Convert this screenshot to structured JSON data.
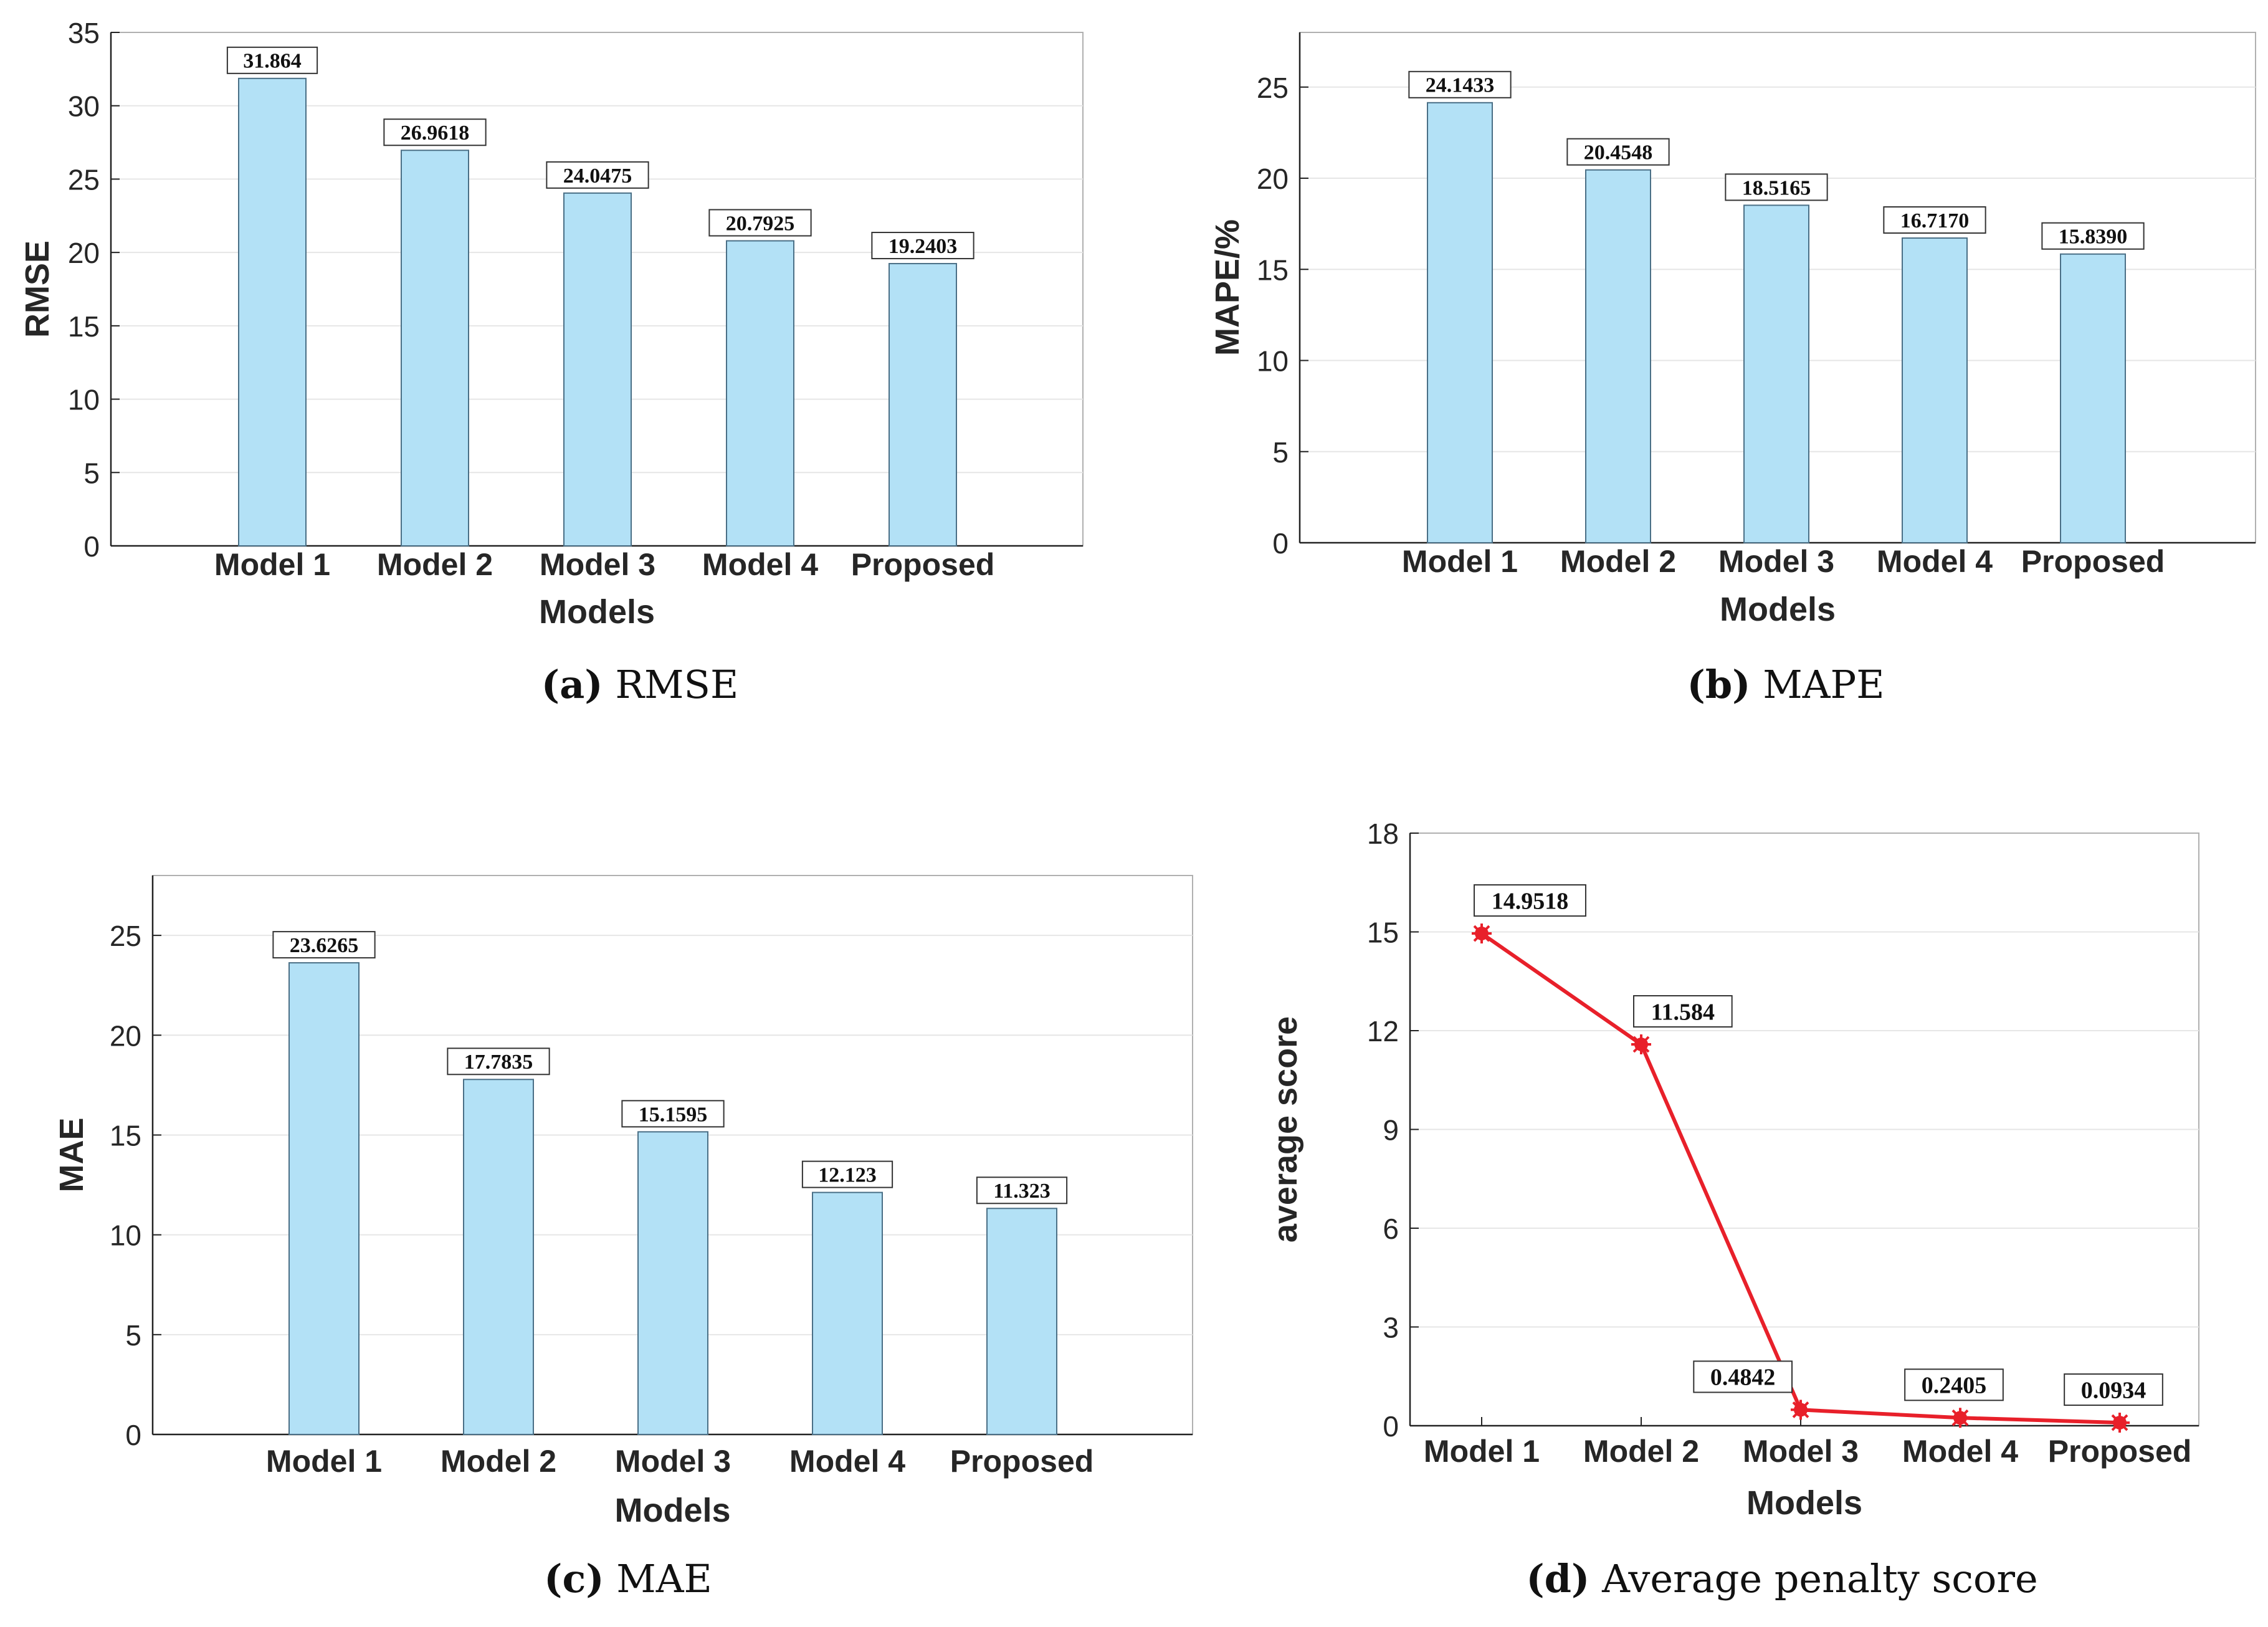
{
  "chart_data": [
    {
      "id": "a",
      "type": "bar",
      "categories": [
        "Model 1",
        "Model 2",
        "Model 3",
        "Model 4",
        "Proposed"
      ],
      "values": [
        31.864,
        26.9618,
        24.0475,
        20.7925,
        19.2403
      ],
      "value_labels": [
        "31.864",
        "26.9618",
        "24.0475",
        "20.7925",
        "19.2403"
      ],
      "ylabel": "RMSE",
      "xlabel": "Models",
      "ylim": [
        0,
        35
      ],
      "yticks": [
        0,
        5,
        10,
        15,
        20,
        25,
        30,
        35
      ],
      "grid": true,
      "caption_letter": "(a)",
      "caption_text": "RMSE"
    },
    {
      "id": "b",
      "type": "bar",
      "categories": [
        "Model 1",
        "Model 2",
        "Model 3",
        "Model 4",
        "Proposed"
      ],
      "values": [
        24.1433,
        20.4548,
        18.5165,
        16.717,
        15.839
      ],
      "value_labels": [
        "24.1433",
        "20.4548",
        "18.5165",
        "16.7170",
        "15.8390"
      ],
      "ylabel": "MAPE/%",
      "xlabel": "Models",
      "ylim": [
        0,
        28
      ],
      "yticks": [
        0,
        5,
        10,
        15,
        20,
        25
      ],
      "grid": true,
      "caption_letter": "(b)",
      "caption_text": "MAPE"
    },
    {
      "id": "c",
      "type": "bar",
      "categories": [
        "Model 1",
        "Model 2",
        "Model 3",
        "Model 4",
        "Proposed"
      ],
      "values": [
        23.6265,
        17.7835,
        15.1595,
        12.123,
        11.323
      ],
      "value_labels": [
        "23.6265",
        "17.7835",
        "15.1595",
        "12.123",
        "11.323"
      ],
      "ylabel": "MAE",
      "xlabel": "Models",
      "ylim": [
        0,
        28
      ],
      "yticks": [
        0,
        5,
        10,
        15,
        20,
        25
      ],
      "grid": true,
      "caption_letter": "(c)",
      "caption_text": "MAE"
    },
    {
      "id": "d",
      "type": "line",
      "categories": [
        "Model 1",
        "Model 2",
        "Model 3",
        "Model 4",
        "Proposed"
      ],
      "values": [
        14.9518,
        11.584,
        0.4842,
        0.2405,
        0.0934
      ],
      "value_labels": [
        "14.9518",
        "11.584",
        "0.4842",
        "0.2405",
        "0.0934"
      ],
      "ylabel": "average score",
      "xlabel": "Models",
      "ylim": [
        0,
        18
      ],
      "yticks": [
        0,
        3,
        6,
        9,
        12,
        15,
        18
      ],
      "grid": true,
      "caption_letter": "(d)",
      "caption_text": "Average penalty score"
    }
  ],
  "colors": {
    "bar_fill": "#b3e1f6",
    "bar_edge": "#4a6f86",
    "line": "#e8202a",
    "axis": "#222222",
    "grid": "#e6e6e6",
    "frame": "#b0b0b0",
    "text": "#262626"
  }
}
